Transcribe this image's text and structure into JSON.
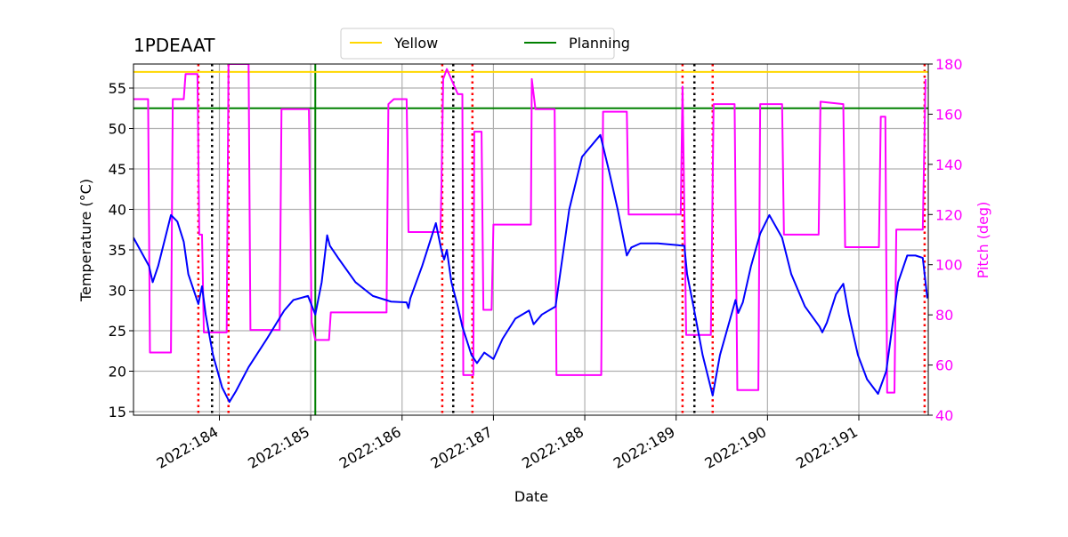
{
  "chart_data": {
    "type": "line",
    "title": "1PDEAAT",
    "xlabel": "Date",
    "ylabel": "Temperature (°C)",
    "y2label": "Pitch (deg)",
    "y2color": "#ff00ff",
    "xlim": [
      183.06,
      191.76
    ],
    "ylim": [
      14.56,
      57.97
    ],
    "y2lim": [
      40,
      180
    ],
    "xticks": [
      {
        "value": 184,
        "label": "2022:184"
      },
      {
        "value": 185,
        "label": "2022:185"
      },
      {
        "value": 186,
        "label": "2022:186"
      },
      {
        "value": 187,
        "label": "2022:187"
      },
      {
        "value": 188,
        "label": "2022:188"
      },
      {
        "value": 189,
        "label": "2022:189"
      },
      {
        "value": 190,
        "label": "2022:190"
      },
      {
        "value": 191,
        "label": "2022:191"
      }
    ],
    "yticks": [
      15,
      20,
      25,
      30,
      35,
      40,
      45,
      50,
      55
    ],
    "y2ticks": [
      40,
      60,
      80,
      100,
      120,
      140,
      160,
      180
    ],
    "grid": true,
    "legend": "upper center",
    "hlines": [
      {
        "name": "Yellow",
        "value": 57.0,
        "color": "#ffd700"
      },
      {
        "name": "Planning",
        "value": 52.5,
        "color": "#008000"
      }
    ],
    "vlines": [
      {
        "x": 185.05,
        "color": "#008000",
        "style": "solid"
      },
      {
        "x": 183.77,
        "color": "#ff0000",
        "style": "dotted"
      },
      {
        "x": 184.1,
        "color": "#ff0000",
        "style": "dotted"
      },
      {
        "x": 186.44,
        "color": "#ff0000",
        "style": "dotted"
      },
      {
        "x": 186.77,
        "color": "#ff0000",
        "style": "dotted"
      },
      {
        "x": 189.07,
        "color": "#ff0000",
        "style": "dotted"
      },
      {
        "x": 189.4,
        "color": "#ff0000",
        "style": "dotted"
      },
      {
        "x": 191.72,
        "color": "#ff0000",
        "style": "dotted"
      },
      {
        "x": 183.92,
        "color": "#000000",
        "style": "dotted"
      },
      {
        "x": 186.56,
        "color": "#000000",
        "style": "dotted"
      },
      {
        "x": 189.2,
        "color": "#000000",
        "style": "dotted"
      }
    ],
    "series": [
      {
        "color": "#ff00ff",
        "axis": "y2",
        "x": [
          183.06,
          183.22,
          183.24,
          183.47,
          183.49,
          183.61,
          183.63,
          183.76,
          183.78,
          183.81,
          183.83,
          184.08,
          184.1,
          184.32,
          184.34,
          184.66,
          184.68,
          184.98,
          185.01,
          185.05,
          185.2,
          185.22,
          185.83,
          185.85,
          185.91,
          186.05,
          186.07,
          186.42,
          186.43,
          186.45,
          186.49,
          186.61,
          186.66,
          186.67,
          186.78,
          186.79,
          186.87,
          186.89,
          186.98,
          187.0,
          187.41,
          187.42,
          187.46,
          187.67,
          187.69,
          188.18,
          188.2,
          188.46,
          188.48,
          189.05,
          189.07,
          189.11,
          189.38,
          189.41,
          189.64,
          189.67,
          189.9,
          189.92,
          190.16,
          190.18,
          190.56,
          190.58,
          190.83,
          190.85,
          191.22,
          191.24,
          191.29,
          191.31,
          191.39,
          191.41,
          191.7,
          191.73
        ],
        "values": [
          166,
          166,
          65,
          65,
          166,
          166,
          176,
          176,
          112,
          112,
          73,
          73,
          180,
          180,
          74,
          74,
          162,
          162,
          77,
          70,
          70,
          81,
          81,
          164,
          166,
          166,
          113,
          113,
          130,
          174,
          178,
          168,
          168,
          56,
          56,
          153,
          153,
          82,
          82,
          116,
          116,
          174,
          162,
          162,
          56,
          56,
          161,
          161,
          120,
          120,
          171,
          72,
          72,
          164,
          164,
          50,
          50,
          164,
          164,
          112,
          112,
          165,
          164,
          107,
          107,
          159,
          159,
          49,
          49,
          114,
          114,
          174
        ]
      },
      {
        "color": "#0000ff",
        "axis": "y",
        "x": [
          183.06,
          183.23,
          183.27,
          183.33,
          183.47,
          183.54,
          183.61,
          183.66,
          183.77,
          183.81,
          183.85,
          183.93,
          184.03,
          184.11,
          184.18,
          184.32,
          184.52,
          184.71,
          184.81,
          184.97,
          185.05,
          185.12,
          185.18,
          185.21,
          185.3,
          185.49,
          185.68,
          185.88,
          186.05,
          186.07,
          186.09,
          186.22,
          186.37,
          186.43,
          186.46,
          186.49,
          186.54,
          186.61,
          186.66,
          186.76,
          186.82,
          186.9,
          187.0,
          187.1,
          187.24,
          187.39,
          187.44,
          187.53,
          187.68,
          187.83,
          187.97,
          188.17,
          188.26,
          188.36,
          188.46,
          188.51,
          188.61,
          188.8,
          189.09,
          189.12,
          189.19,
          189.29,
          189.4,
          189.48,
          189.58,
          189.65,
          189.68,
          189.73,
          189.82,
          189.92,
          190.02,
          190.16,
          190.26,
          190.41,
          190.57,
          190.6,
          190.65,
          190.75,
          190.83,
          190.89,
          190.99,
          191.09,
          191.21,
          191.3,
          191.36,
          191.43,
          191.53,
          191.62,
          191.7,
          191.75
        ],
        "values": [
          36.5,
          33,
          31,
          33,
          39.3,
          38.5,
          36,
          32,
          28.3,
          30.5,
          27,
          22,
          18,
          16.2,
          17.5,
          20.5,
          24,
          27.5,
          28.8,
          29.3,
          27,
          31,
          36.8,
          35.5,
          34,
          31,
          29.3,
          28.6,
          28.5,
          27.8,
          29,
          33,
          38.3,
          35,
          33.8,
          35,
          31,
          28,
          25.5,
          22,
          21,
          22.3,
          21.5,
          24,
          26.5,
          27.5,
          25.8,
          27,
          28,
          40,
          46.5,
          49.2,
          45,
          40,
          34.3,
          35.3,
          35.8,
          35.8,
          35.5,
          32,
          28,
          22,
          17,
          22,
          26,
          28.8,
          27.2,
          28.5,
          33,
          37,
          39.3,
          36.5,
          32,
          28,
          25.5,
          24.8,
          26,
          29.5,
          30.8,
          27,
          22,
          19,
          17.2,
          20,
          25,
          31,
          34.3,
          34.3,
          34,
          29
        ]
      }
    ]
  }
}
